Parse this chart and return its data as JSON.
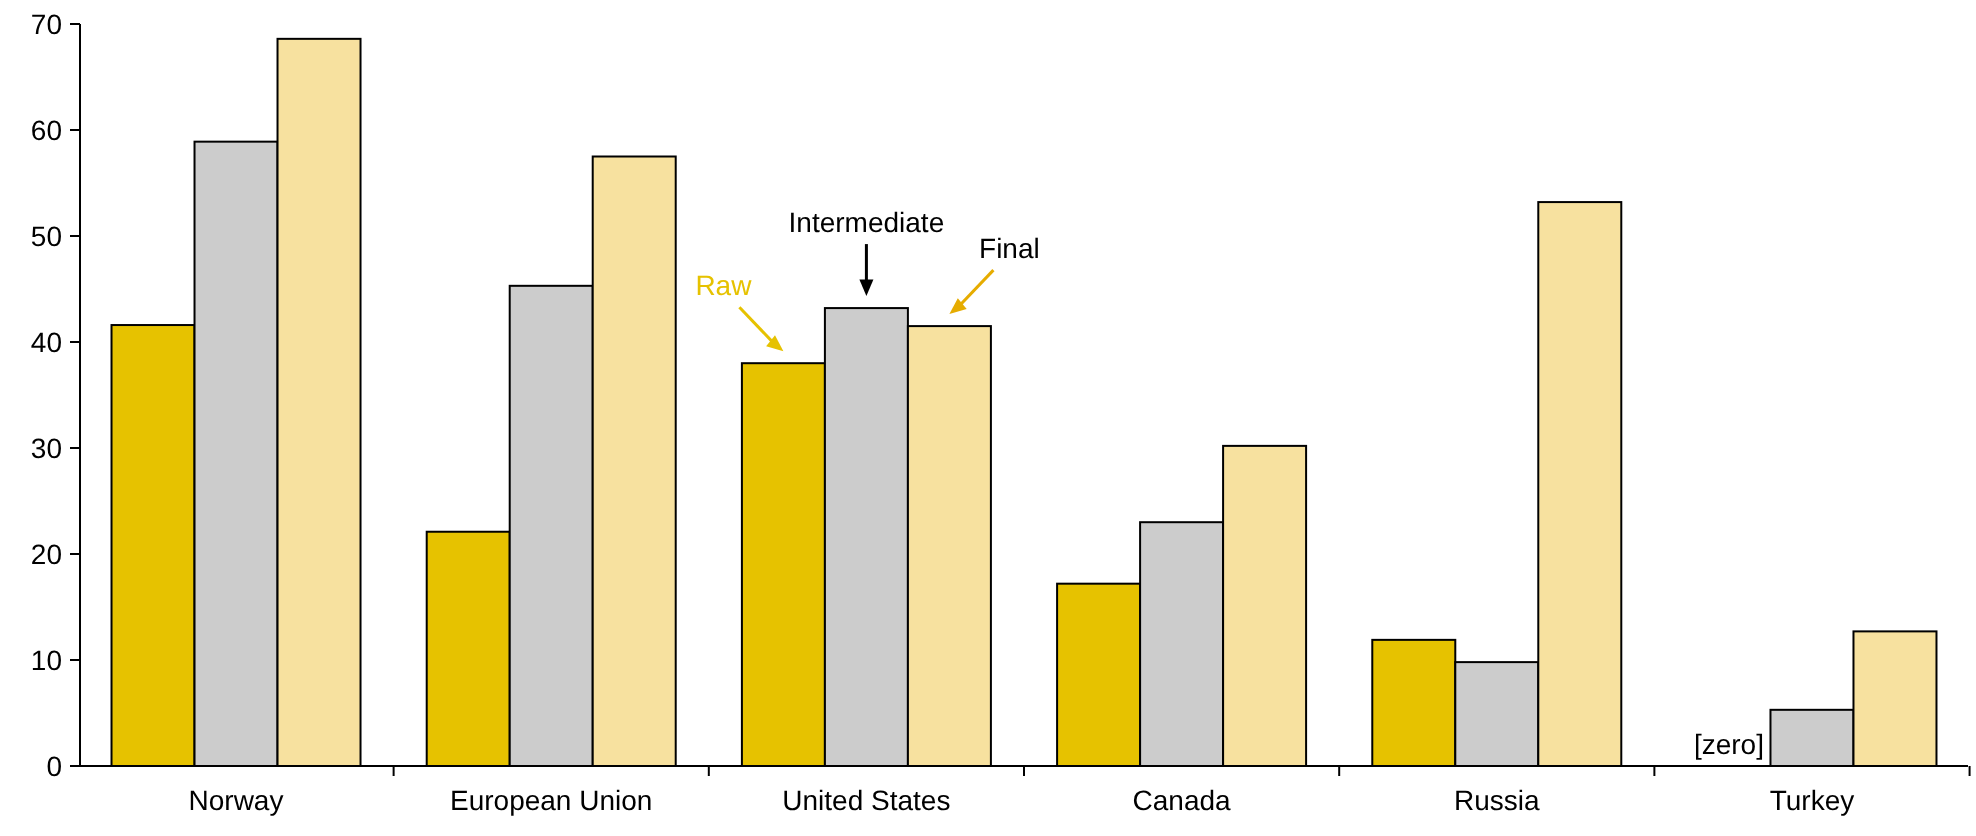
{
  "chart_data": {
    "type": "bar",
    "categories": [
      "Norway",
      "European Union",
      "United States",
      "Canada",
      "Russia",
      "Turkey"
    ],
    "series": [
      {
        "name": "Raw",
        "color": "#e6c200",
        "values": [
          41.6,
          22.1,
          38,
          17.2,
          11.9,
          0
        ]
      },
      {
        "name": "Intermediate",
        "color": "#cccccc",
        "values": [
          58.9,
          45.3,
          43.2,
          23,
          9.8,
          5.3
        ]
      },
      {
        "name": "Final",
        "color": "#f7e19f",
        "values": [
          68.6,
          57.5,
          41.5,
          30.2,
          53.2,
          12.7
        ]
      }
    ],
    "ylim": [
      0,
      70
    ],
    "yticks": [
      0,
      10,
      20,
      30,
      40,
      50,
      60,
      70
    ],
    "grid": false,
    "legend": false,
    "annotations": [
      {
        "text": "[zero]",
        "x": "Turkey",
        "y": 0
      }
    ]
  }
}
